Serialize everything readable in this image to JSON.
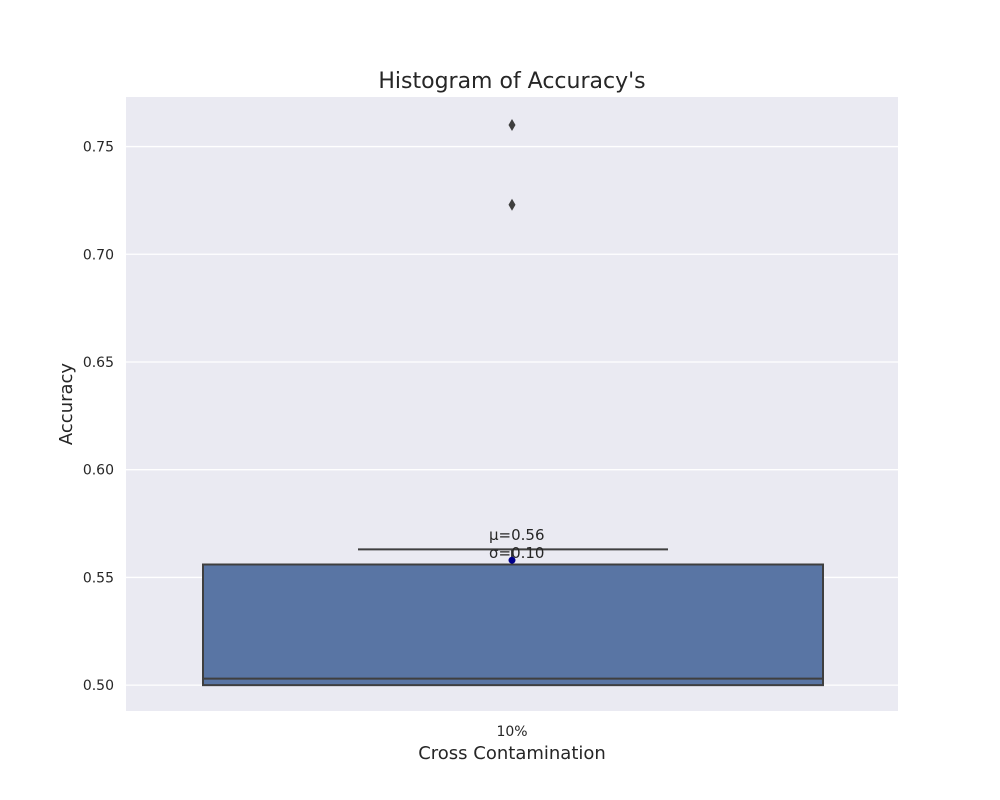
{
  "chart_data": {
    "type": "box",
    "title": "Histogram of Accuracy's",
    "xlabel": "Cross Contamination",
    "ylabel": "Accuracy",
    "categories": [
      "10%"
    ],
    "ylim": [
      0.488,
      0.773
    ],
    "yticks": [
      0.5,
      0.55,
      0.6,
      0.65,
      0.7,
      0.75
    ],
    "ytick_labels": [
      "0.50",
      "0.55",
      "0.60",
      "0.65",
      "0.70",
      "0.75"
    ],
    "grid": true,
    "box": {
      "q1": 0.5,
      "median": 0.503,
      "q3": 0.556,
      "whisker_high": 0.563,
      "outliers": [
        0.723,
        0.76
      ],
      "mean": 0.558
    },
    "annotations": {
      "mean_label": "μ=0.56",
      "std_label": "σ=0.10"
    },
    "colors": {
      "plot_bg": "#eaeaf2",
      "grid": "#ffffff",
      "box_fill": "#5975a4",
      "line": "#3f3f3f",
      "mean_marker": "#00008b"
    }
  }
}
